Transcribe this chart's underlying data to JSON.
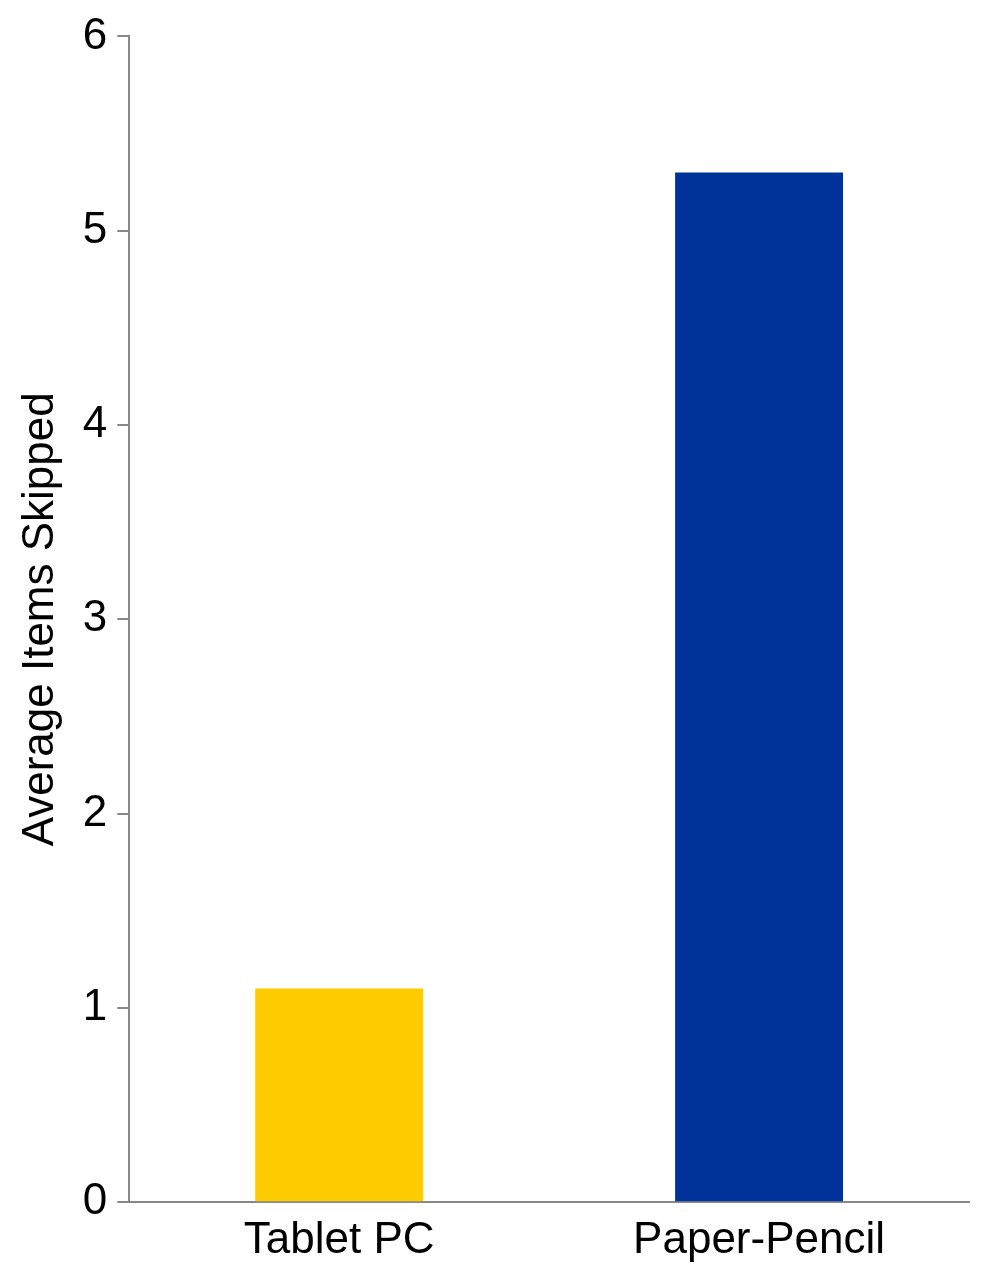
{
  "chart_data": {
    "type": "bar",
    "ylabel": "Average Items Skipped",
    "categories": [
      "Tablet PC",
      "Paper-Pencil"
    ],
    "values": [
      1.1,
      5.3
    ],
    "colors": [
      "#ffcc00",
      "#003399"
    ],
    "ylim": [
      0,
      6
    ],
    "yticks": [
      0,
      1,
      2,
      3,
      4,
      5,
      6
    ],
    "grid": false,
    "legend": false
  }
}
